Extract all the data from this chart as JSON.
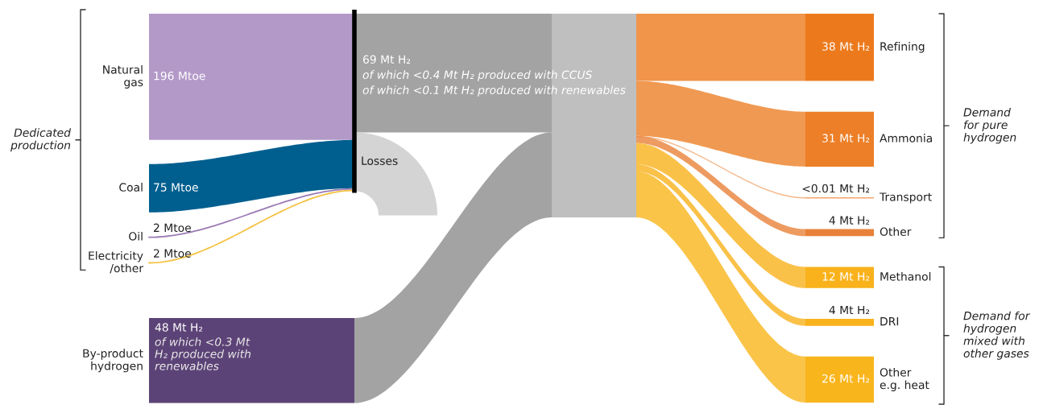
{
  "chart_data": {
    "type": "other",
    "categories": [
      "Natural\ngas",
      "Coal",
      "Oil",
      "Electricity\n/other",
      "By-product\nhydrogen",
      "Losses",
      "Refining",
      "Ammonia",
      "Transport",
      "Other",
      "Methanol",
      "DRI",
      "Other\ne.g. heat"
    ],
    "series": [
      {
        "values": [
          196,
          75,
          2,
          2,
          null,
          null,
          null,
          null,
          null,
          null,
          null,
          null,
          null
        ],
        "colors": [
          "#b399c8",
          "#005f8f",
          "#9b7bb5",
          "#f5c242",
          null,
          null,
          null,
          null,
          null,
          null,
          null,
          null,
          null
        ],
        "value_labels": [
          "196 Mtoe",
          "75 Mtoe",
          "2 Mtoe",
          "2 Mtoe",
          null,
          null,
          null,
          null,
          null,
          null,
          null,
          null,
          null
        ]
      },
      {
        "values": [
          null,
          null,
          null,
          null,
          48,
          null,
          null,
          null,
          null,
          null,
          null,
          null,
          null
        ],
        "colors": [
          null,
          null,
          null,
          null,
          "#5c4377",
          null,
          null,
          null,
          null,
          null,
          null,
          null,
          null
        ],
        "value_labels": [
          null,
          null,
          null,
          null,
          "48 Mt H₂",
          null,
          null,
          null,
          null,
          null,
          null,
          null,
          null
        ]
      },
      {
        "values": [
          null,
          null,
          null,
          null,
          null,
          null,
          38,
          31,
          0.01,
          4,
          null,
          null,
          null
        ],
        "colors": [
          null,
          null,
          null,
          null,
          null,
          null,
          "#ec7a1c",
          "#ec7f27",
          "#f3a56a",
          "#e8823a",
          null,
          null,
          null
        ],
        "value_labels": [
          null,
          null,
          null,
          null,
          null,
          null,
          "38 Mt H₂",
          "31 Mt H₂",
          "<0.01 Mt H₂",
          "4 Mt H₂",
          null,
          null,
          null
        ]
      },
      {
        "values": [
          null,
          null,
          null,
          null,
          null,
          null,
          null,
          null,
          null,
          null,
          12,
          4,
          26
        ],
        "colors": [
          null,
          null,
          null,
          null,
          null,
          null,
          null,
          null,
          null,
          null,
          "#f9b21b",
          "#f9b21b",
          "#f9b51c"
        ],
        "value_labels": [
          null,
          null,
          null,
          null,
          null,
          null,
          null,
          null,
          null,
          null,
          "12 Mt H₂",
          "4 Mt H₂",
          "26 Mt H₂"
        ]
      }
    ],
    "annotations": [
      "69 Mt H₂",
      "of which <0.4 Mt H₂ produced with CCUS",
      "of which <0.1 Mt H₂ produced with renewables",
      {
        "text": "of which <0.3 Mt\nH₂ produced with\nrenewables",
        "x": "By-product\nhydrogen"
      },
      "Dedicated\nproduction",
      "Demand\nfor pure\nhydrogen",
      "Demand for\nhydrogen\nmixed with\nother gases"
    ]
  }
}
